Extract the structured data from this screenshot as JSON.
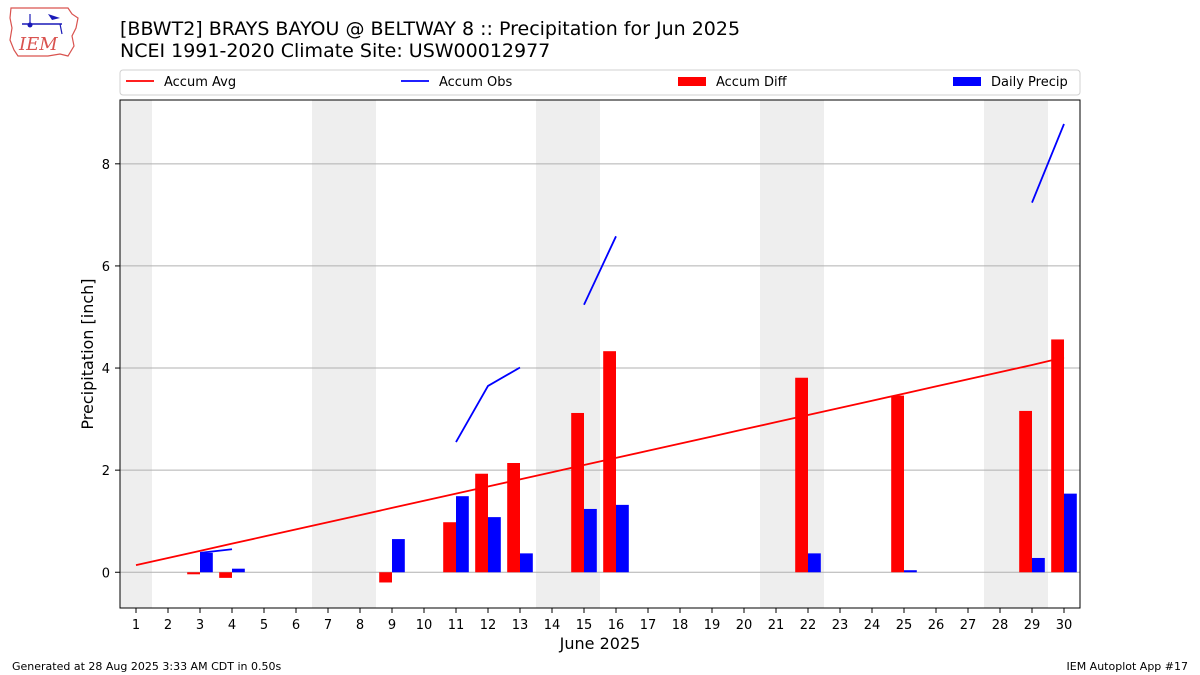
{
  "header": {
    "title_line1": "[BBWT2] BRAYS BAYOU @ BELTWAY 8 :: Precipitation for Jun 2025",
    "title_line2": "NCEI 1991-2020 Climate Site: USW00012977"
  },
  "logo": {
    "text": "IEM",
    "icon": "iem-logo-icon"
  },
  "footer": {
    "left": "Generated at 28 Aug 2025 3:33 AM CDT in 0.50s",
    "right": "IEM Autoplot App #17"
  },
  "colors": {
    "accum_avg": "#ff0000",
    "accum_obs": "#0000ff",
    "accum_diff": "#ff0000",
    "daily_precip": "#0000ff",
    "weekend_shade": "#eeeeee",
    "grid": "#b0b0b0"
  },
  "chart_data": {
    "type": "bar",
    "title": "[BBWT2] BRAYS BAYOU @ BELTWAY 8 :: Precipitation for Jun 2025",
    "subtitle": "NCEI 1991-2020 Climate Site: USW00012977",
    "xlabel": "June 2025",
    "ylabel": "Precipitation [inch]",
    "x": [
      1,
      2,
      3,
      4,
      5,
      6,
      7,
      8,
      9,
      10,
      11,
      12,
      13,
      14,
      15,
      16,
      17,
      18,
      19,
      20,
      21,
      22,
      23,
      24,
      25,
      26,
      27,
      28,
      29,
      30
    ],
    "xlim": [
      0.5,
      30.5
    ],
    "ylim": [
      -0.7,
      9.25
    ],
    "yticks": [
      0,
      2,
      4,
      6,
      8
    ],
    "grid": "y",
    "legend": {
      "placement": "top",
      "entries": [
        "Accum Avg",
        "Accum Obs",
        "Accum Diff",
        "Daily Precip"
      ]
    },
    "shaded_days": [
      1,
      7,
      8,
      14,
      15,
      21,
      22,
      28,
      29
    ],
    "series": [
      {
        "name": "Accum Avg",
        "type": "line",
        "values": [
          0.14,
          0.28,
          0.42,
          0.56,
          0.7,
          0.84,
          0.98,
          1.12,
          1.26,
          1.4,
          1.54,
          1.68,
          1.82,
          1.96,
          2.1,
          2.24,
          2.38,
          2.52,
          2.66,
          2.8,
          2.94,
          3.08,
          3.22,
          3.36,
          3.5,
          3.64,
          3.78,
          3.92,
          4.06,
          4.21
        ]
      },
      {
        "name": "Accum Obs",
        "type": "line",
        "values": [
          null,
          null,
          0.38,
          0.45,
          null,
          null,
          null,
          null,
          null,
          null,
          2.55,
          3.65,
          4.01,
          null,
          5.24,
          6.58,
          null,
          null,
          null,
          null,
          null,
          null,
          null,
          null,
          null,
          null,
          null,
          null,
          7.24,
          8.78
        ]
      },
      {
        "name": "Accum Diff",
        "type": "bar",
        "values": [
          0,
          0,
          -0.04,
          -0.11,
          0,
          0,
          0,
          0,
          -0.2,
          0,
          0.98,
          1.93,
          2.14,
          0,
          3.12,
          4.33,
          0,
          0,
          0,
          0,
          0,
          3.81,
          0,
          0,
          3.46,
          0,
          0,
          0,
          3.16,
          4.56
        ]
      },
      {
        "name": "Daily Precip",
        "type": "bar",
        "values": [
          0,
          0,
          0.38,
          0.07,
          0,
          0,
          0,
          0,
          0.65,
          0,
          1.49,
          1.08,
          0.37,
          0,
          1.24,
          1.32,
          0,
          0,
          0,
          0,
          0,
          0.37,
          0,
          0,
          0.04,
          0,
          0,
          0,
          0.28,
          1.54
        ]
      }
    ]
  }
}
